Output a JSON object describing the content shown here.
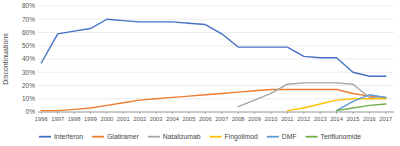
{
  "chart_data": {
    "type": "line",
    "ylabel": "Discontinuations",
    "x": [
      1996,
      1997,
      1998,
      1999,
      2000,
      2001,
      2002,
      2003,
      2004,
      2005,
      2006,
      2007,
      2008,
      2009,
      2010,
      2011,
      2012,
      2013,
      2014,
      2015,
      2016,
      2017
    ],
    "series": [
      {
        "name": "Interferon",
        "color": "#4472C4",
        "values": [
          0.37,
          0.59,
          0.61,
          0.63,
          0.7,
          0.69,
          0.68,
          0.68,
          0.68,
          0.67,
          0.66,
          0.59,
          0.49,
          0.49,
          0.49,
          0.49,
          0.42,
          0.41,
          0.41,
          0.3,
          0.27,
          0.27
        ]
      },
      {
        "name": "Glatiramer",
        "color": "#ED7D31",
        "values": [
          0.01,
          0.01,
          0.02,
          0.03,
          0.05,
          0.07,
          0.09,
          0.1,
          0.11,
          0.12,
          0.13,
          0.14,
          0.15,
          0.16,
          0.17,
          0.17,
          0.17,
          0.17,
          0.17,
          0.14,
          0.12,
          0.11
        ]
      },
      {
        "name": "Natalizumab",
        "color": "#A5A5A5",
        "values": [
          null,
          null,
          null,
          null,
          null,
          null,
          null,
          null,
          null,
          null,
          null,
          null,
          0.04,
          0.09,
          0.14,
          0.21,
          0.22,
          0.22,
          0.22,
          0.21,
          0.11,
          0.1
        ]
      },
      {
        "name": "Fingolimod",
        "color": "#FFC000",
        "values": [
          null,
          null,
          null,
          null,
          null,
          null,
          null,
          null,
          null,
          null,
          null,
          null,
          null,
          null,
          null,
          0.01,
          0.03,
          0.06,
          0.09,
          0.1,
          0.1,
          0.1
        ]
      },
      {
        "name": "DMF",
        "color": "#5B9BD5",
        "values": [
          null,
          null,
          null,
          null,
          null,
          null,
          null,
          null,
          null,
          null,
          null,
          null,
          null,
          null,
          null,
          null,
          null,
          null,
          0.01,
          0.08,
          0.13,
          0.11
        ]
      },
      {
        "name": "Teriflunomide",
        "color": "#70AD47",
        "values": [
          null,
          null,
          null,
          null,
          null,
          null,
          null,
          null,
          null,
          null,
          null,
          null,
          null,
          null,
          null,
          null,
          null,
          null,
          0.01,
          0.03,
          0.05,
          0.06
        ]
      }
    ],
    "xlim": [
      1995.8,
      2017.5
    ],
    "xticks": [
      1996,
      1997,
      1998,
      1999,
      2000,
      2001,
      2002,
      2003,
      2004,
      2005,
      2006,
      2007,
      2008,
      2009,
      2010,
      2011,
      2012,
      2013,
      2014,
      2015,
      2016,
      2017
    ],
    "ylim": [
      0,
      0.8
    ],
    "yticks": [
      {
        "value": 0,
        "label": "0%"
      },
      {
        "value": 0.1,
        "label": "10%"
      },
      {
        "value": 0.2,
        "label": "20%"
      },
      {
        "value": 0.3,
        "label": "30%"
      },
      {
        "value": 0.4,
        "label": "40%"
      },
      {
        "value": 0.5,
        "label": "50%"
      },
      {
        "value": 0.6,
        "label": "60%"
      },
      {
        "value": 0.7,
        "label": "70%"
      },
      {
        "value": 0.8,
        "label": "80%"
      }
    ],
    "grid": true,
    "legend": "bottom"
  }
}
